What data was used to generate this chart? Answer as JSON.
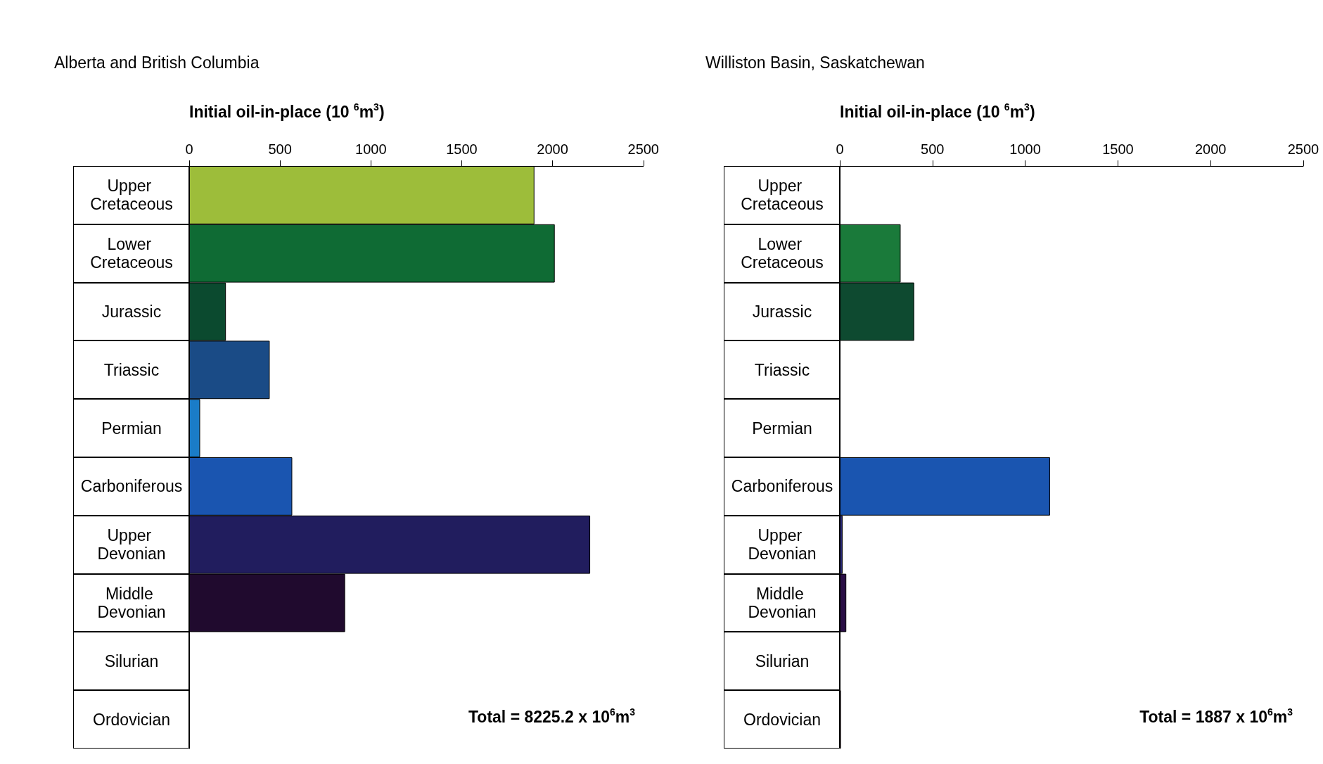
{
  "chart_data": [
    {
      "type": "bar",
      "orientation": "horizontal",
      "title": "Alberta and British Columbia",
      "xlabel": "Initial oil-in-place (10 $^{6}$m$^{3}$)",
      "categories": [
        "Upper Cretaceous",
        "Lower Cretaceous",
        "Jurassic",
        "Triassic",
        "Permian",
        "Carboniferous",
        "Upper Devonian",
        "Middle Devonian",
        "Silurian",
        "Ordovician"
      ],
      "values": [
        1900,
        2012,
        202,
        443,
        60,
        567,
        2207,
        858,
        0,
        0
      ],
      "colors": [
        "#9dbd3a",
        "#0f6b34",
        "#0b4a2f",
        "#1a4b86",
        "#1a7cc8",
        "#1a55b0",
        "#211d5e",
        "#200a2e",
        null,
        null
      ],
      "xlim": [
        0,
        2500
      ],
      "xticks": [
        0,
        500,
        1000,
        1500,
        2000,
        2500
      ],
      "annotations": [
        "Total = 8225.2 x 10$^{6}$m$^{3}$"
      ]
    },
    {
      "type": "bar",
      "orientation": "horizontal",
      "title": "Williston Basin, Saskatchewan",
      "xlabel": "Initial oil-in-place (10 $^{6}$m$^{3}$)",
      "categories": [
        "Upper Cretaceous",
        "Lower Cretaceous",
        "Jurassic",
        "Triassic",
        "Permian",
        "Carboniferous",
        "Upper Devonian",
        "Middle Devonian",
        "Silurian",
        "Ordovician"
      ],
      "values": [
        0,
        328,
        401,
        0,
        0,
        1134,
        15,
        35,
        0,
        6
      ],
      "colors": [
        null,
        "#1a7a3a",
        "#0e4a30",
        null,
        null,
        "#1a55b0",
        "#2a2a7a",
        "#2a0e45",
        null,
        "#d0202e"
      ],
      "xlim": [
        0,
        2500
      ],
      "xticks": [
        0,
        500,
        1000,
        1500,
        2000,
        2500
      ],
      "annotations": [
        "Total = 1887 x 10$^{6}$m$^{3}$"
      ]
    }
  ]
}
